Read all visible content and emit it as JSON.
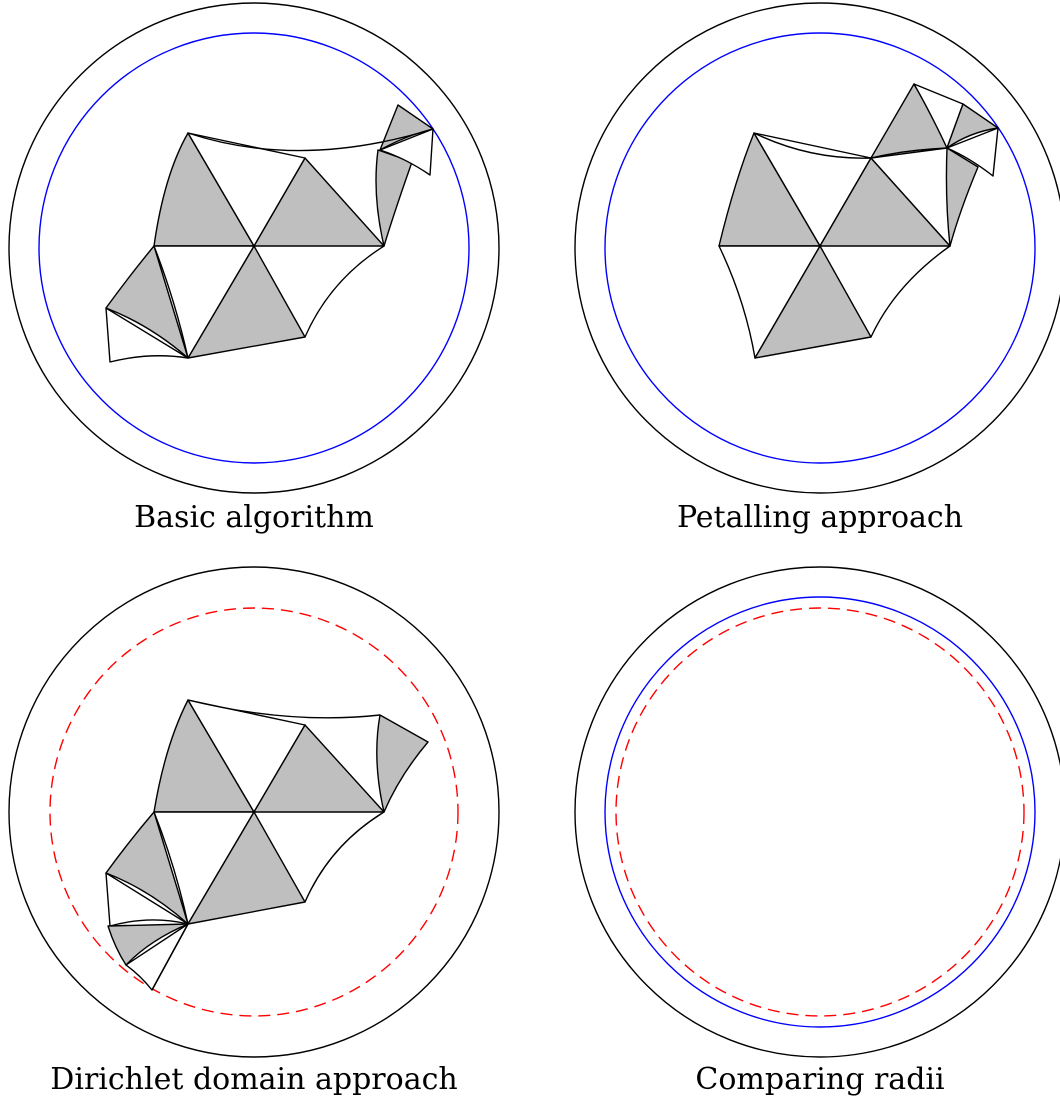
{
  "panels": [
    {
      "id": "basic",
      "caption": "Basic algorithm",
      "circles": [
        "blue"
      ]
    },
    {
      "id": "petalling",
      "caption": "Petalling approach",
      "circles": [
        "blue"
      ]
    },
    {
      "id": "dirichlet",
      "caption": "Dirichlet domain approach",
      "circles": [
        "red-dashed"
      ]
    },
    {
      "id": "comparing",
      "caption": "Comparing radii",
      "circles": [
        "blue",
        "red-dashed"
      ]
    }
  ],
  "colors": {
    "tile_fill": "#bfbfbf",
    "tile_stroke": "#000000",
    "boundary": "#000000",
    "basic_radius": "#0000ff",
    "dirichlet_radius": "#ff0000"
  }
}
